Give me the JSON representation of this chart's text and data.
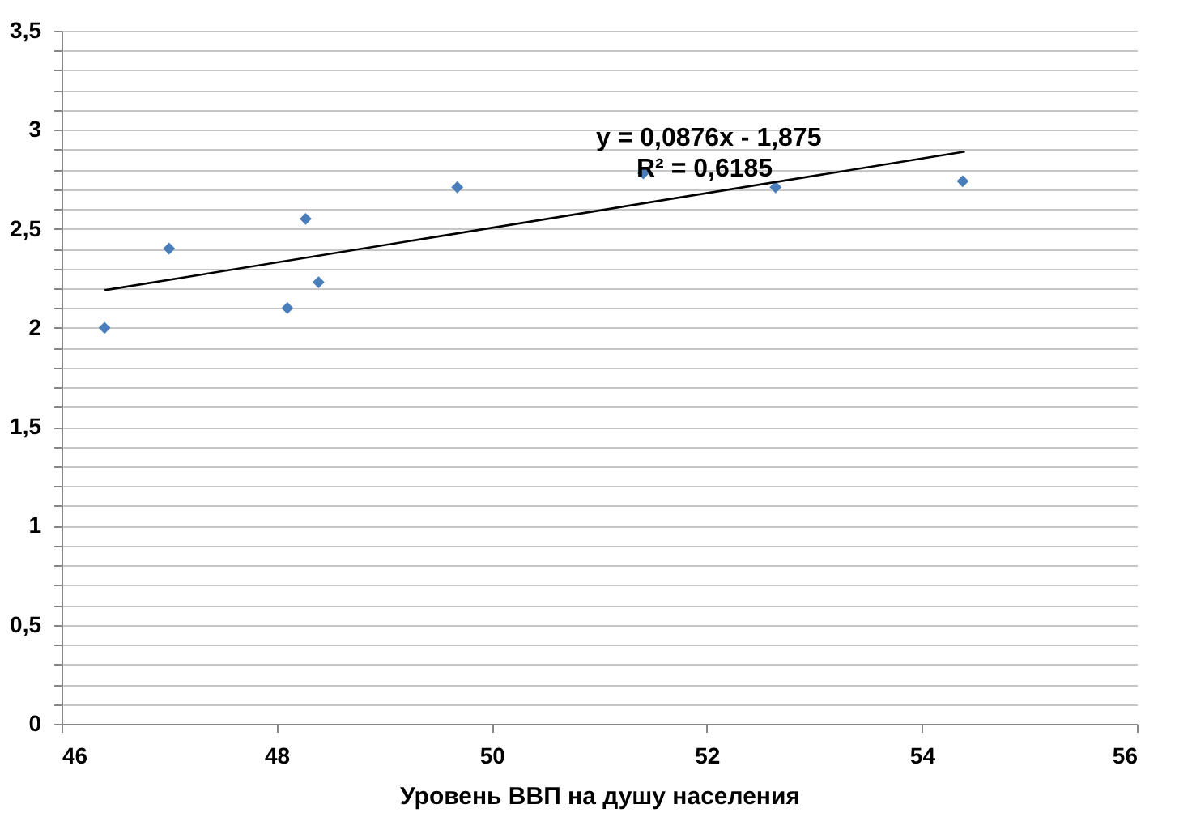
{
  "chart_data": {
    "type": "scatter",
    "xlabel": "Уровень ВВП на душу населения",
    "xlim": [
      46,
      56
    ],
    "xticks": [
      46,
      48,
      50,
      52,
      54,
      56
    ],
    "ylim": [
      0,
      3.5
    ],
    "yticks": [
      0,
      {
        "value": 0.1,
        "label": null
      },
      {
        "value": 0.2,
        "label": null
      },
      {
        "value": 0.3,
        "label": null
      },
      {
        "value": 0.4,
        "label": null
      },
      {
        "value": 0.5,
        "label": "0,5"
      },
      {
        "value": 0.6,
        "label": null
      },
      {
        "value": 0.7,
        "label": null
      },
      {
        "value": 0.8,
        "label": null
      },
      {
        "value": 0.9,
        "label": null
      },
      1,
      {
        "value": 1.1,
        "label": null
      },
      {
        "value": 1.2,
        "label": null
      },
      {
        "value": 1.3,
        "label": null
      },
      {
        "value": 1.4,
        "label": null
      },
      {
        "value": 1.5,
        "label": "1,5"
      },
      {
        "value": 1.6,
        "label": null
      },
      {
        "value": 1.7,
        "label": null
      },
      {
        "value": 1.8,
        "label": null
      },
      {
        "value": 1.9,
        "label": null
      },
      2,
      {
        "value": 2.1,
        "label": null
      },
      {
        "value": 2.2,
        "label": null
      },
      {
        "value": 2.3,
        "label": null
      },
      {
        "value": 2.4,
        "label": null
      },
      {
        "value": 2.5,
        "label": "2,5"
      },
      {
        "value": 2.6,
        "label": null
      },
      {
        "value": 2.7,
        "label": null
      },
      {
        "value": 2.8,
        "label": null
      },
      {
        "value": 2.9,
        "label": null
      },
      3,
      {
        "value": 3.1,
        "label": null
      },
      {
        "value": 3.2,
        "label": null
      },
      {
        "value": 3.3,
        "label": null
      },
      {
        "value": 3.4,
        "label": null
      },
      {
        "value": 3.5,
        "label": "3,5"
      }
    ],
    "grid": "y",
    "marker": "diamond",
    "series": [
      {
        "color": "#4a7ebb",
        "x": [
          46.4,
          47.0,
          48.1,
          48.27,
          48.39,
          49.68,
          51.41,
          52.64,
          54.38
        ],
        "values": [
          2.0,
          2.4,
          2.1,
          2.55,
          2.23,
          2.71,
          2.78,
          2.71,
          2.74
        ]
      },
      {
        "type": "line",
        "marker": "none",
        "color": "#000000",
        "x": [
          46.4,
          54.4
        ],
        "values": [
          2.19,
          2.89
        ]
      }
    ],
    "annotations": [
      "y = 0,0876x - 1,875",
      "R² = 0,6185"
    ]
  }
}
